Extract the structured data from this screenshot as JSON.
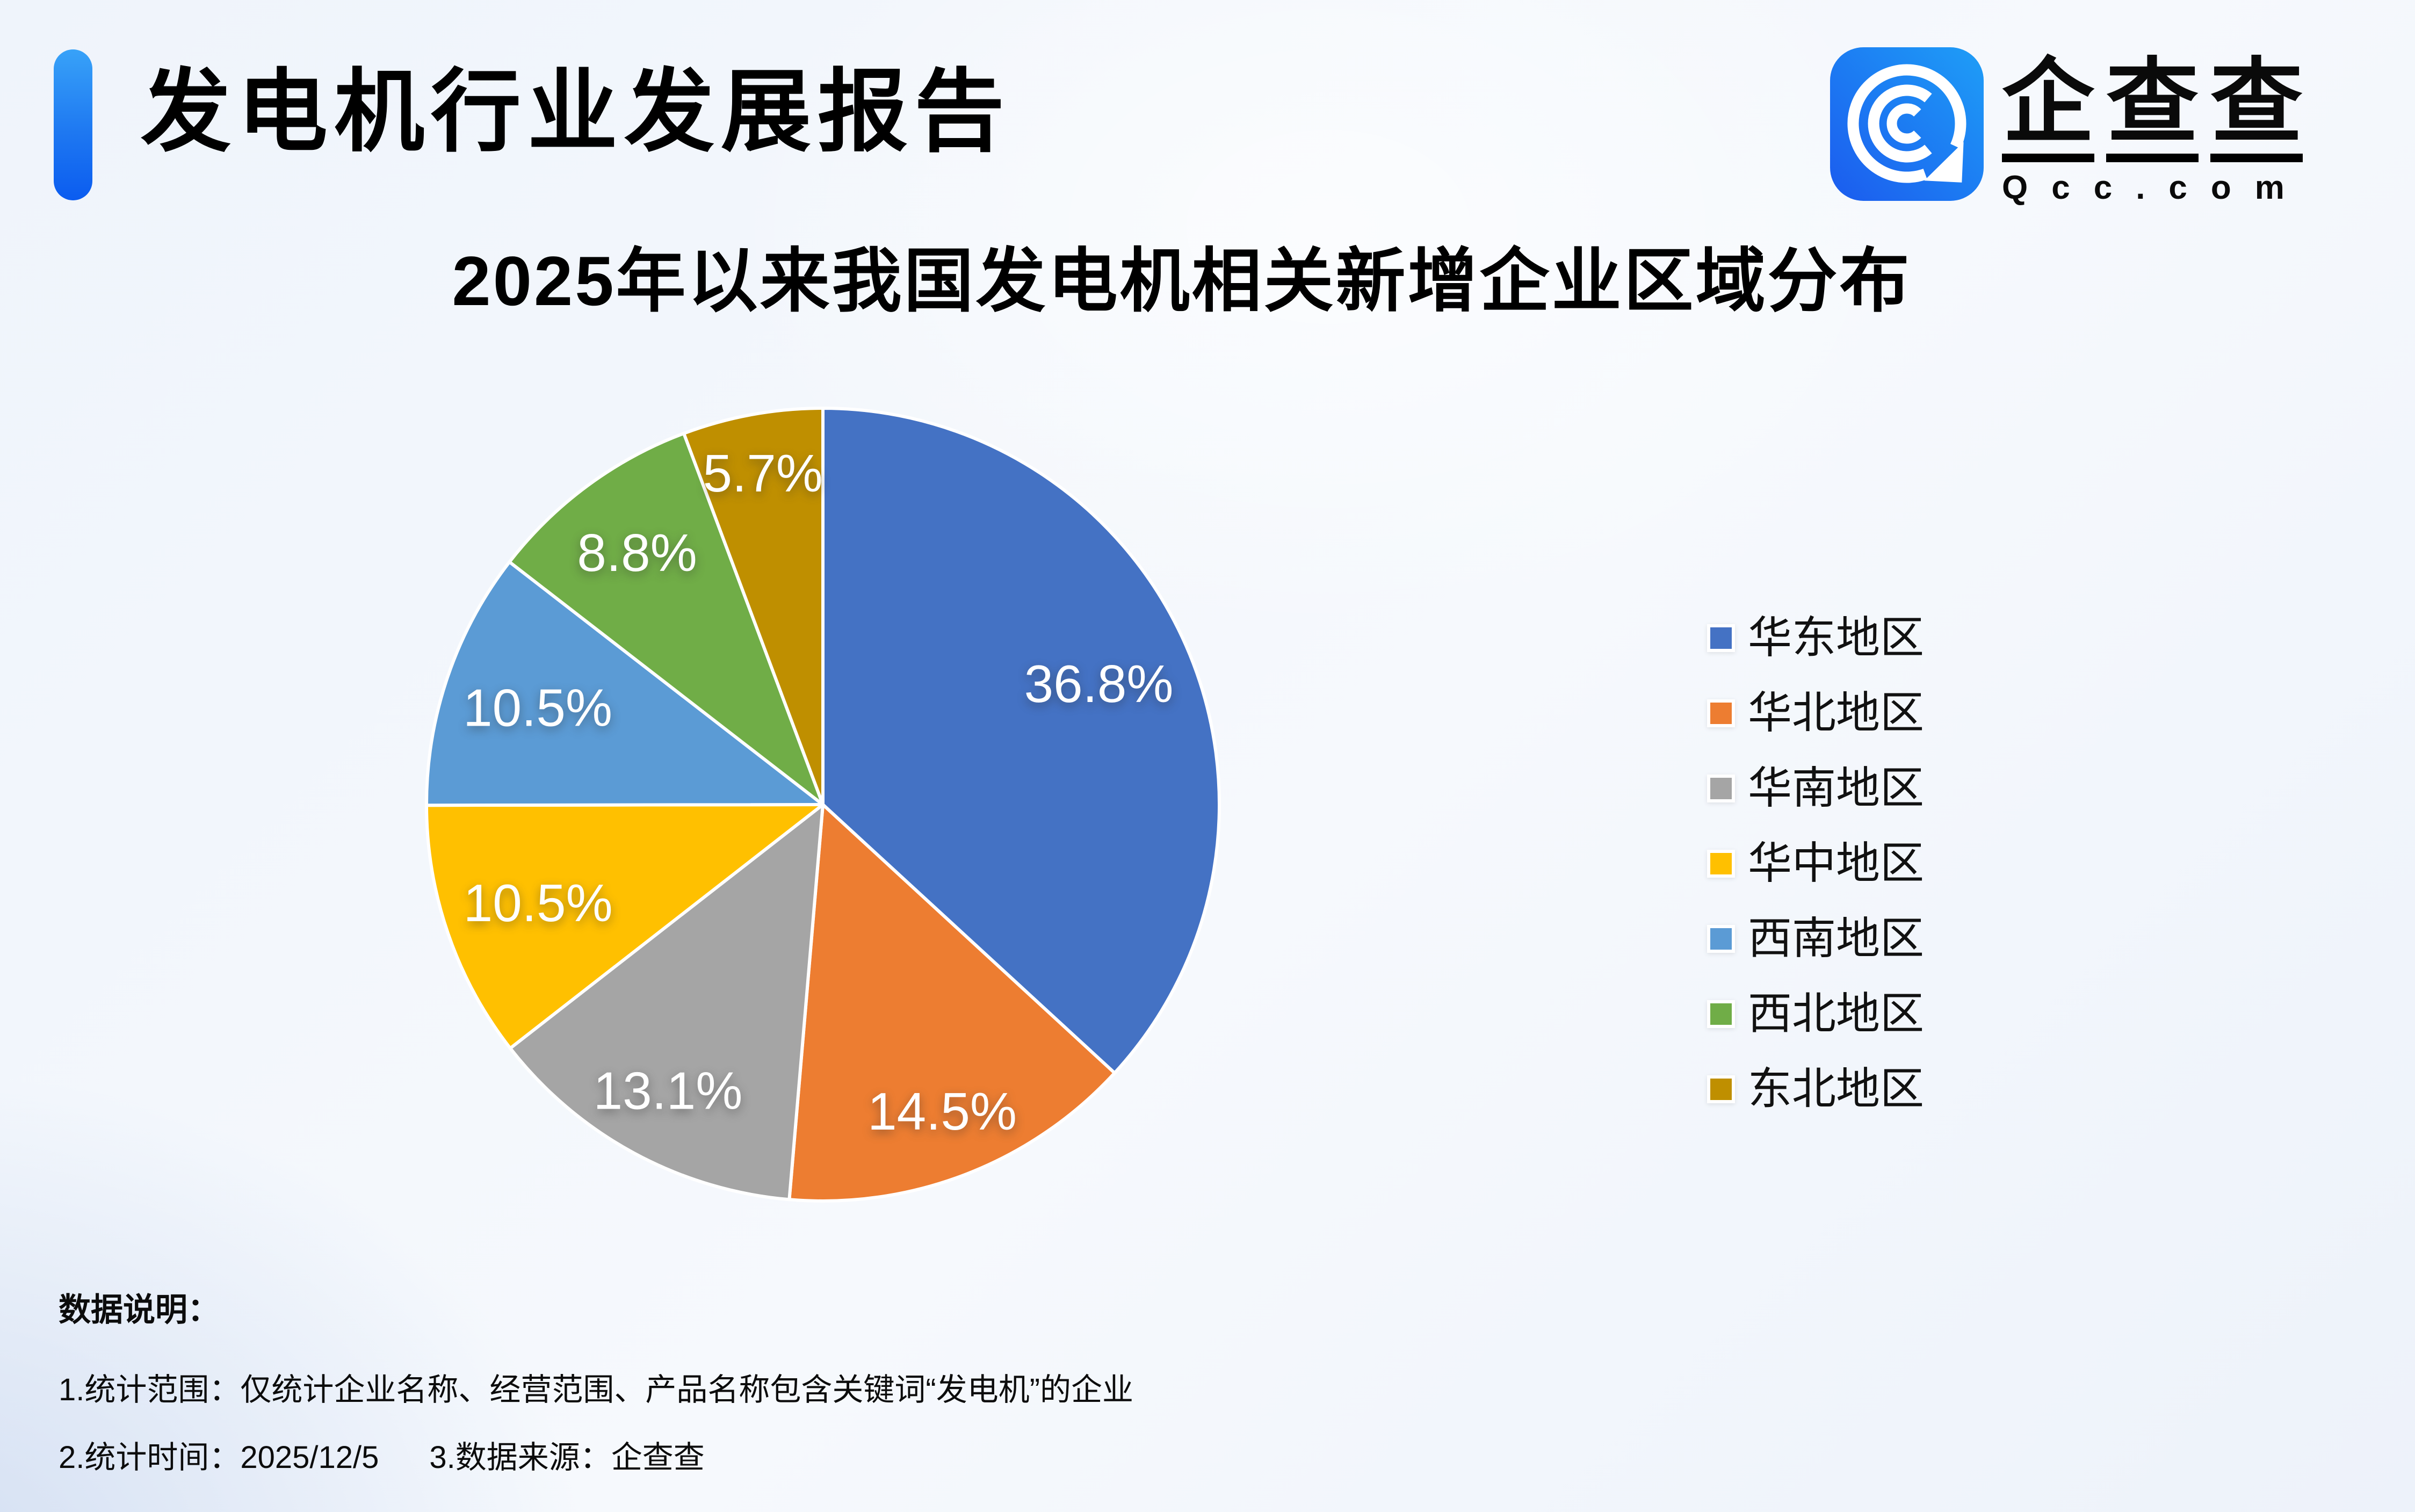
{
  "header": {
    "title": "发电机行业发展报告",
    "logo": {
      "name": "企查查",
      "domain": "Qcc.com",
      "icon": "qcc-magnifier-icon"
    }
  },
  "chart_data": {
    "type": "pie",
    "title": "2025年以来我国发电机相关新增企业区域分布",
    "categories": [
      "华东地区",
      "华北地区",
      "华南地区",
      "华中地区",
      "西南地区",
      "西北地区",
      "东北地区"
    ],
    "values": [
      36.8,
      14.5,
      13.1,
      10.5,
      10.5,
      8.8,
      5.7
    ],
    "labels": [
      "36.8%",
      "14.5%",
      "13.1%",
      "10.5%",
      "10.5%",
      "8.8%",
      "5.7%"
    ],
    "unit": "%",
    "colors": [
      "#4472C4",
      "#ED7D31",
      "#A5A5A5",
      "#FFC000",
      "#5B9BD5",
      "#70AD47",
      "#BF8F00"
    ],
    "label_color": "#FFFFFF",
    "legend_position": "right",
    "start_angle_deg": 0,
    "direction": "clockwise"
  },
  "footer": {
    "heading": "数据说明：",
    "note1": "1.统计范围：仅统计企业名称、经营范围、产品名称包含关键词“发电机”的企业",
    "note2_time": "2.统计时间：2025/12/5",
    "note2_source": "3.数据来源：企查查"
  },
  "colors": {
    "accent_bar_top": "#38A2F8",
    "accent_bar_bottom": "#0B5CF0",
    "logo_gradient_start": "#1B5BEE",
    "logo_gradient_end": "#1E9EF7",
    "background_tint": "#D2DEF2",
    "text": "#000000"
  }
}
